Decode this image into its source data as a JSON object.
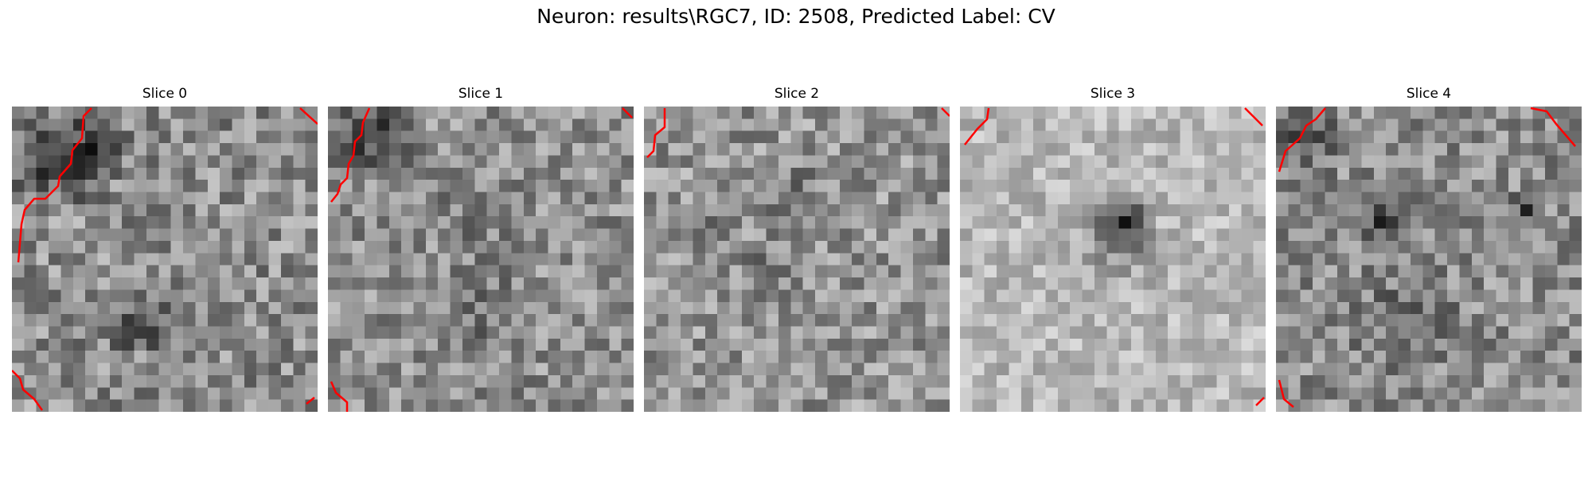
{
  "figure": {
    "title": "Neuron: results\\RGC7, ID: 2508, Predicted Label: CV",
    "contour_color": "#ff0000"
  },
  "panels": [
    {
      "title": "Slice 0"
    },
    {
      "title": "Slice 1"
    },
    {
      "title": "Slice 2"
    },
    {
      "title": "Slice 3"
    },
    {
      "title": "Slice 4"
    }
  ]
}
